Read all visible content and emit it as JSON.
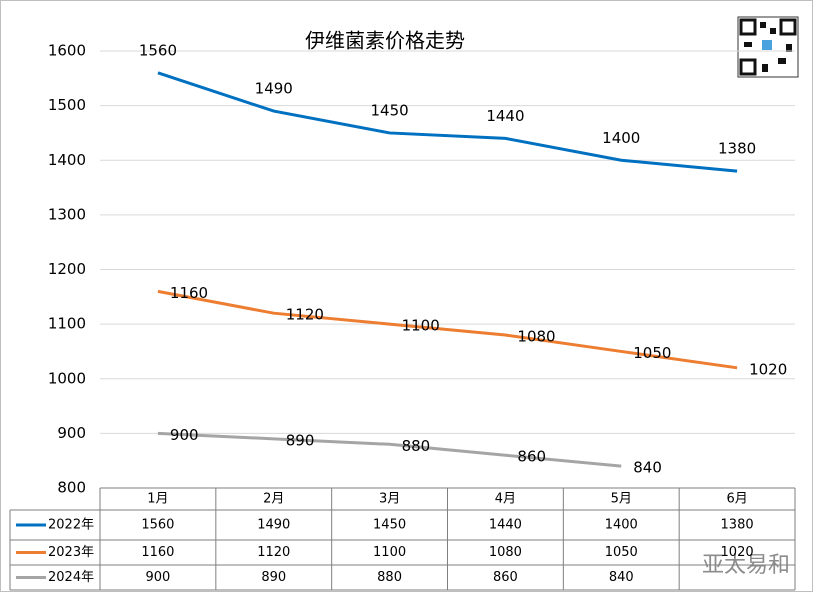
{
  "chart_data": {
    "type": "line",
    "title": "伊维菌素价格走势",
    "categories": [
      "1月",
      "2月",
      "3月",
      "4月",
      "5月",
      "6月"
    ],
    "series": [
      {
        "name": "2022年",
        "color": "#0070c0",
        "values": [
          1560,
          1490,
          1450,
          1440,
          1400,
          1380
        ]
      },
      {
        "name": "2023年",
        "color": "#ed7d31",
        "values": [
          1160,
          1120,
          1100,
          1080,
          1050,
          1020
        ]
      },
      {
        "name": "2024年",
        "color": "#a5a5a5",
        "values": [
          900,
          890,
          880,
          860,
          840,
          null
        ]
      }
    ],
    "ylim": [
      800,
      1600
    ],
    "yticks": [
      800,
      900,
      1000,
      1100,
      1200,
      1300,
      1400,
      1500,
      1600
    ],
    "grid": true,
    "watermark": "亚太易和"
  }
}
